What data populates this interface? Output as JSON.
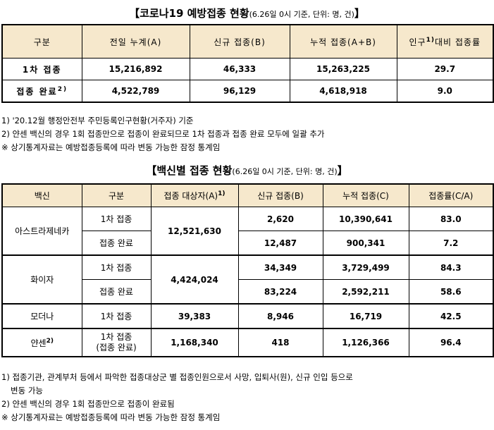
{
  "title1": {
    "main": "【코로나19 예방접종 현황",
    "sub": "(6.26일 0시 기준, 단위: 명, 건)",
    "end": "】"
  },
  "table1": {
    "headers": [
      "구분",
      "전일 누계(A)",
      "신규 접종(B)",
      "누적 접종(A+B)",
      "인구",
      "대비 접종률"
    ],
    "header_sup": "1)",
    "rows": [
      {
        "label": "1차 접종",
        "prev": "15,216,892",
        "new": "46,333",
        "cum": "15,263,225",
        "rate": "29.7"
      },
      {
        "label": "접종 완료",
        "label_sup": "2)",
        "prev": "4,522,789",
        "new": "96,129",
        "cum": "4,618,918",
        "rate": "9.0"
      }
    ]
  },
  "notes1": [
    "1) '20.12월 행정안전부 주민등록인구현황(거주자) 기준",
    "2) 얀센 백신의 경우 1회 접종만으로 접종이 완료되므로 1차 접종과 접종 완료 모두에 일괄 추가",
    "※ 상기통계자료는 예방접종등록에 따라 변동 가능한 잠정 통계임"
  ],
  "title2": {
    "main": "【백신별 접종 현황",
    "sub": "(6.26일 0시 기준, 단위: 명, 건)",
    "end": "】"
  },
  "table2": {
    "headers": [
      "백신",
      "구분",
      "접종 대상자(A)",
      "신규 접종(B)",
      "누적 접종(C)",
      "접종률(C/A)"
    ],
    "header_sup": "1)",
    "vaccines": [
      {
        "name": "아스트라제네카",
        "target": "12,521,630",
        "rows": [
          {
            "dose": "1차 접종",
            "new": "2,620",
            "cum": "10,390,641",
            "rate": "83.0"
          },
          {
            "dose": "접종 완료",
            "new": "12,487",
            "cum": "900,341",
            "rate": "7.2"
          }
        ]
      },
      {
        "name": "화이자",
        "target": "4,424,024",
        "rows": [
          {
            "dose": "1차 접종",
            "new": "34,349",
            "cum": "3,729,499",
            "rate": "84.3"
          },
          {
            "dose": "접종 완료",
            "new": "83,224",
            "cum": "2,592,211",
            "rate": "58.6"
          }
        ]
      },
      {
        "name": "모더나",
        "target": "39,383",
        "rows": [
          {
            "dose": "1차 접종",
            "new": "8,946",
            "cum": "16,719",
            "rate": "42.5"
          }
        ]
      },
      {
        "name": "얀센",
        "name_sup": "2)",
        "target": "1,168,340",
        "rows": [
          {
            "dose": "1차 접종",
            "dose2": "(접종 완료)",
            "new": "418",
            "cum": "1,126,366",
            "rate": "96.4"
          }
        ]
      }
    ]
  },
  "notes2": [
    "1) 접종기관, 관계부처 등에서 파악한 접종대상군 별 접종인원으로서 사망, 입퇴사(원), 신규 인입 등으로",
    "변동 가능",
    "2) 얀센 백신의 경우 1회 접종만으로 접종이 완료됨",
    "※ 상기통계자료는 예방접종등록에 따라 변동 가능한 잠정 통계임"
  ]
}
